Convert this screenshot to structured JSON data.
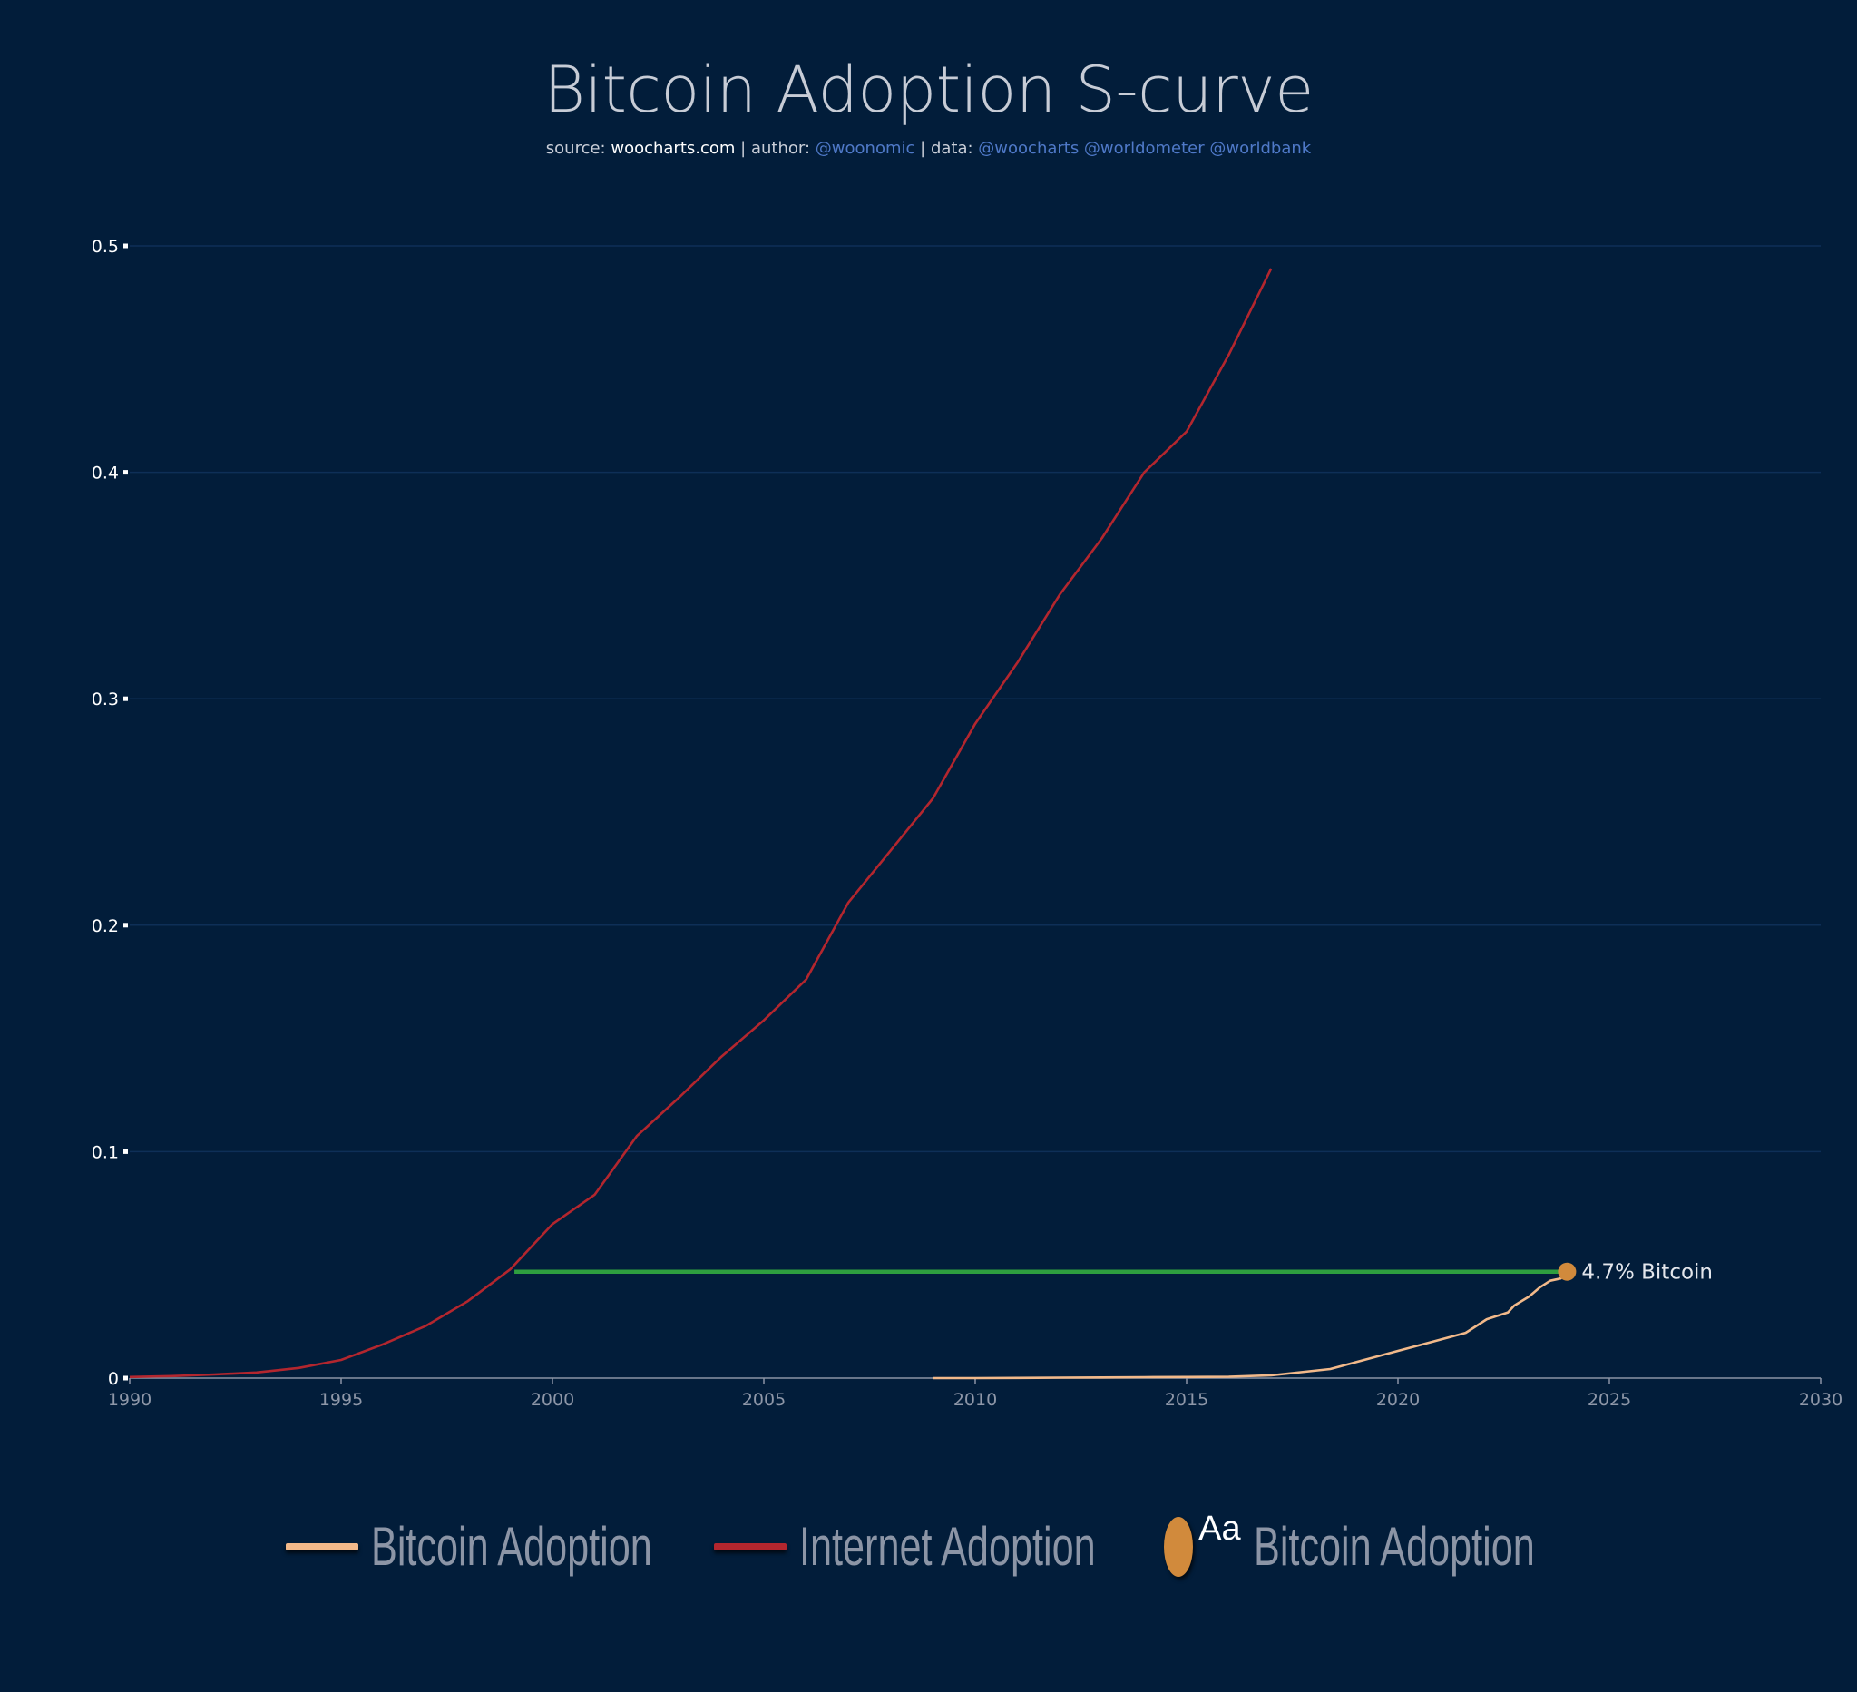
{
  "header": {
    "title": "Bitcoin Adoption S-curve",
    "subtitle": {
      "source_label": "source:",
      "source_value": "woocharts.com",
      "sep1": "|",
      "author_label": "author:",
      "author_value": "@woonomic",
      "sep2": "|",
      "data_label": "data:",
      "data_value": "@woocharts @worldometer @worldbank"
    }
  },
  "colors": {
    "background": "#021d3a",
    "grid": "#0e2f57",
    "bitcoin": "#f2b98a",
    "internet": "#b3262e",
    "marker": "#d18a3c",
    "hline": "#2e9e3f"
  },
  "chart_data": {
    "type": "line",
    "title": "Bitcoin Adoption S-curve",
    "xlabel": "",
    "ylabel": "",
    "xlim": [
      1990,
      2030
    ],
    "ylim": [
      0,
      0.5
    ],
    "x_ticks": [
      1990,
      1995,
      2000,
      2005,
      2010,
      2015,
      2020,
      2025,
      2030
    ],
    "y_ticks": [
      0,
      0.1,
      0.2,
      0.3,
      0.4,
      0.5
    ],
    "y_tick_labels": [
      "0",
      "0.1",
      "0.2",
      "0.3",
      "0.4",
      "0.5"
    ],
    "grid": true,
    "series": [
      {
        "name": "Bitcoin Adoption",
        "x": [
          2009,
          2010,
          2011,
          2012,
          2013,
          2014,
          2015,
          2016,
          2017,
          2018.4,
          2019.2,
          2020,
          2020.8,
          2021.6,
          2022.1,
          2022.6,
          2022.75,
          2023.1,
          2023.35,
          2023.6,
          2023.85,
          2024.0
        ],
        "values": [
          0.0,
          0.0,
          0.0001,
          0.0002,
          0.0003,
          0.0004,
          0.0005,
          0.0006,
          0.0012,
          0.004,
          0.008,
          0.012,
          0.016,
          0.02,
          0.026,
          0.029,
          0.032,
          0.036,
          0.04,
          0.043,
          0.044,
          0.047
        ]
      },
      {
        "name": "Internet Adoption",
        "x": [
          1990,
          1991,
          1992,
          1993,
          1994,
          1995,
          1996,
          1997,
          1998,
          1999,
          2000,
          2001,
          2002,
          2003,
          2004,
          2005,
          2006,
          2007,
          2008,
          2009,
          2010,
          2011,
          2012,
          2013,
          2014,
          2015,
          2016,
          2017
        ],
        "values": [
          0.0005,
          0.0009,
          0.0016,
          0.0025,
          0.0045,
          0.008,
          0.015,
          0.023,
          0.034,
          0.048,
          0.068,
          0.081,
          0.107,
          0.124,
          0.142,
          0.158,
          0.176,
          0.21,
          0.233,
          0.256,
          0.289,
          0.316,
          0.346,
          0.371,
          0.4,
          0.418,
          0.452,
          0.49
        ]
      }
    ],
    "annotations": [
      {
        "type": "hline",
        "y": 0.047,
        "x_start": 1999.1,
        "x_end": 2024.0
      },
      {
        "type": "marker",
        "x": 2024.0,
        "y": 0.047,
        "label": "4.7% Bitcoin"
      }
    ],
    "legend": {
      "position": "bottom-center",
      "entries": [
        {
          "name": "Bitcoin Adoption",
          "kind": "line"
        },
        {
          "name": "Internet Adoption",
          "kind": "line"
        },
        {
          "name": "Bitcoin Adoption",
          "kind": "marker",
          "glyph": "Aa"
        }
      ]
    }
  }
}
